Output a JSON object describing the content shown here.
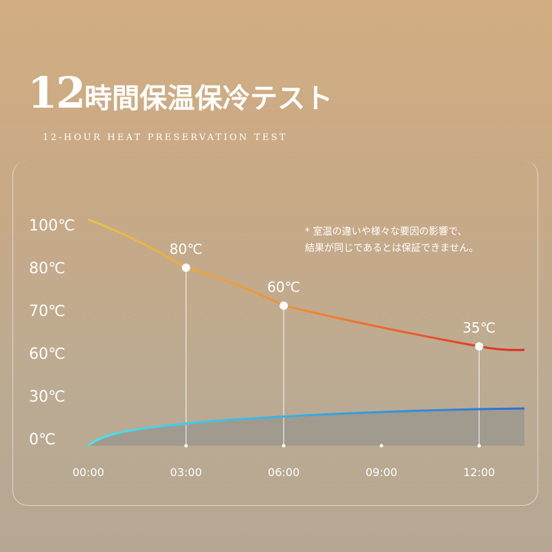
{
  "header": {
    "title_number": "12",
    "title_text": "時間保温保冷テスト",
    "subtitle": "12-HOUR HEAT PRESERVATION TEST"
  },
  "note": {
    "line1": "* 室温の違いや様々な要因の影響で、",
    "line2": "結果が同じであるとは保証できません。"
  },
  "chart_data": {
    "type": "line",
    "title": "12時間保温保冷テスト",
    "xlabel": "",
    "ylabel": "",
    "x_ticks": [
      "00:00",
      "03:00",
      "06:00",
      "09:00",
      "12:00"
    ],
    "y_ticks": [
      "100℃",
      "80℃",
      "70℃",
      "60℃",
      "30℃",
      "0℃"
    ],
    "series": [
      {
        "x": [
          0,
          3,
          6,
          12
        ],
        "y": [
          100,
          80,
          60,
          35
        ],
        "labels": [
          "",
          "80℃",
          "60℃",
          "35℃"
        ],
        "color_start": "#e8c545",
        "color_mid": "#f08a30",
        "color_end": "#dc2a26"
      },
      {
        "x": [
          0,
          12
        ],
        "y": [
          0,
          null
        ],
        "color_start": "#45e6f0",
        "color_end": "#2a6fd2"
      }
    ],
    "grid": false
  }
}
